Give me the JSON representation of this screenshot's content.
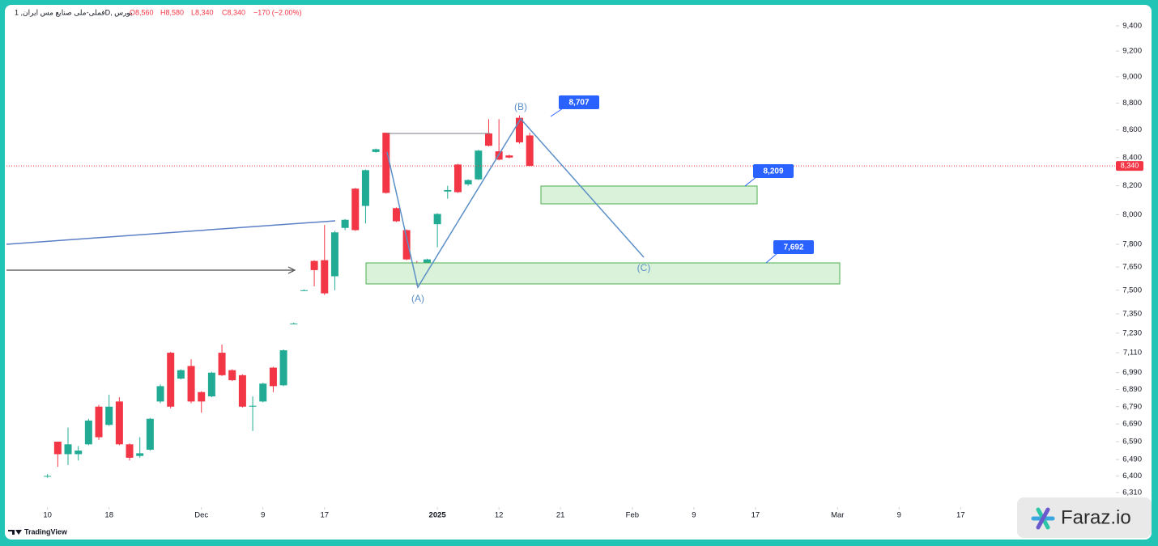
{
  "header": {
    "symbol": "فملی-ملی صنایع مس ایران, 1D, بورس",
    "open": {
      "value": 8560,
      "label": "O8,560"
    },
    "high": {
      "value": 8580,
      "label": "H8,580"
    },
    "low": {
      "value": 8340,
      "label": "L8,340"
    },
    "close": {
      "value": 8340,
      "label": "C8,340"
    },
    "change": {
      "value": -170,
      "label": "−170 (−2.00%)"
    }
  },
  "chart_data": {
    "type": "candlestick",
    "log_scale": true,
    "up_color": "#22ab94",
    "down_color": "#f23645",
    "candles": {
      "x": [
        0,
        1,
        2,
        3,
        4,
        5,
        6,
        7,
        8,
        9,
        10,
        11,
        12,
        13,
        14,
        15,
        16,
        17,
        18,
        19,
        20,
        21,
        22,
        23,
        24,
        25,
        26,
        27,
        28,
        29,
        30,
        31,
        32,
        33,
        34,
        35,
        36,
        37,
        38,
        39,
        40,
        41,
        42,
        43,
        44,
        45,
        46,
        47
      ],
      "open": [
        6400,
        6590,
        6520,
        6520,
        6575,
        6790,
        6685,
        6820,
        6575,
        6510,
        6545,
        6820,
        7110,
        6955,
        7030,
        6875,
        6850,
        7110,
        7005,
        6975,
        6790,
        6820,
        7020,
        6915,
        7290,
        7500,
        7690,
        7695,
        7590,
        7910,
        8180,
        8060,
        8440,
        8580,
        8045,
        7895,
        7680,
        7645,
        7935,
        8160,
        8350,
        8210,
        8245,
        8575,
        8445,
        8415,
        8690,
        8560
      ],
      "high": [
        6410,
        6590,
        6670,
        6565,
        6720,
        6800,
        6860,
        6845,
        6580,
        6615,
        6725,
        6920,
        7115,
        7010,
        7070,
        6880,
        6995,
        7160,
        7010,
        6980,
        6850,
        6930,
        7025,
        7130,
        7295,
        7505,
        7695,
        7930,
        7890,
        7970,
        8185,
        8315,
        8465,
        8580,
        8050,
        7900,
        7690,
        7705,
        8010,
        8200,
        8355,
        8245,
        8455,
        8680,
        8680,
        8420,
        8707,
        8580
      ],
      "low": [
        6390,
        6450,
        6460,
        6485,
        6570,
        6600,
        6680,
        6570,
        6485,
        6500,
        6540,
        6810,
        6780,
        6950,
        6810,
        6755,
        6845,
        6970,
        6940,
        6785,
        6650,
        6815,
        6875,
        6910,
        7285,
        7495,
        7525,
        7470,
        7500,
        7895,
        7890,
        7940,
        8435,
        8145,
        7950,
        7695,
        7530,
        7640,
        7780,
        8110,
        8150,
        8200,
        8240,
        8480,
        8380,
        8395,
        8500,
        8340
      ],
      "close": [
        6400,
        6520,
        6575,
        6540,
        6710,
        6615,
        6790,
        6575,
        6500,
        6525,
        6720,
        6910,
        6790,
        7005,
        6820,
        6820,
        6990,
        6975,
        6945,
        6790,
        6795,
        6925,
        6910,
        7125,
        7290,
        7500,
        7630,
        7480,
        7880,
        7965,
        7895,
        8310,
        8460,
        8150,
        7955,
        7700,
        7610,
        7700,
        8005,
        8170,
        8155,
        8240,
        8450,
        8485,
        8385,
        8400,
        8510,
        8340
      ]
    },
    "last_price": {
      "value": 8340,
      "label": "8,340"
    },
    "xlim": [
      -4,
      103.5
    ],
    "xticks": [
      {
        "value": 0,
        "label": "10"
      },
      {
        "value": 6,
        "label": "18"
      },
      {
        "value": 15,
        "label": "Dec"
      },
      {
        "value": 21,
        "label": "9"
      },
      {
        "value": 27,
        "label": "17"
      },
      {
        "value": 38,
        "label": "2025"
      },
      {
        "value": 44,
        "label": "12"
      },
      {
        "value": 50,
        "label": "21"
      },
      {
        "value": 57,
        "label": "Feb"
      },
      {
        "value": 63,
        "label": "9"
      },
      {
        "value": 69,
        "label": "17"
      },
      {
        "value": 77,
        "label": "Mar"
      },
      {
        "value": 83,
        "label": "9"
      },
      {
        "value": 89,
        "label": "17"
      }
    ],
    "ylim": [
      6240,
      9557
    ],
    "yticks": [
      {
        "value": 9400,
        "label": "9,400"
      },
      {
        "value": 9200,
        "label": "9,200"
      },
      {
        "value": 9000,
        "label": "9,000"
      },
      {
        "value": 8800,
        "label": "8,800"
      },
      {
        "value": 8600,
        "label": "8,600"
      },
      {
        "value": 8400,
        "label": "8,400"
      },
      {
        "value": 8200,
        "label": "8,200"
      },
      {
        "value": 8000,
        "label": "8,000"
      },
      {
        "value": 7800,
        "label": "7,800"
      },
      {
        "value": 7650,
        "label": "7,650"
      },
      {
        "value": 7500,
        "label": "7,500"
      },
      {
        "value": 7350,
        "label": "7,350"
      },
      {
        "value": 7230,
        "label": "7,230"
      },
      {
        "value": 7110,
        "label": "7,110"
      },
      {
        "value": 6990,
        "label": "6,990"
      },
      {
        "value": 6890,
        "label": "6,890"
      },
      {
        "value": 6790,
        "label": "6,790"
      },
      {
        "value": 6690,
        "label": "6,690"
      },
      {
        "value": 6590,
        "label": "6,590"
      },
      {
        "value": 6490,
        "label": "6,490"
      },
      {
        "value": 6400,
        "label": "6,400"
      },
      {
        "value": 6310,
        "label": "6,310"
      }
    ],
    "annotations": {
      "b_price": "8,707",
      "zone1_price": "8,209",
      "zone2_price": "7,692",
      "wave_a": "(A)",
      "wave_b": "(B)",
      "wave_c": "(C)"
    }
  },
  "footer": {
    "tradingview": "TradingView",
    "brand": "Faraz.io"
  }
}
